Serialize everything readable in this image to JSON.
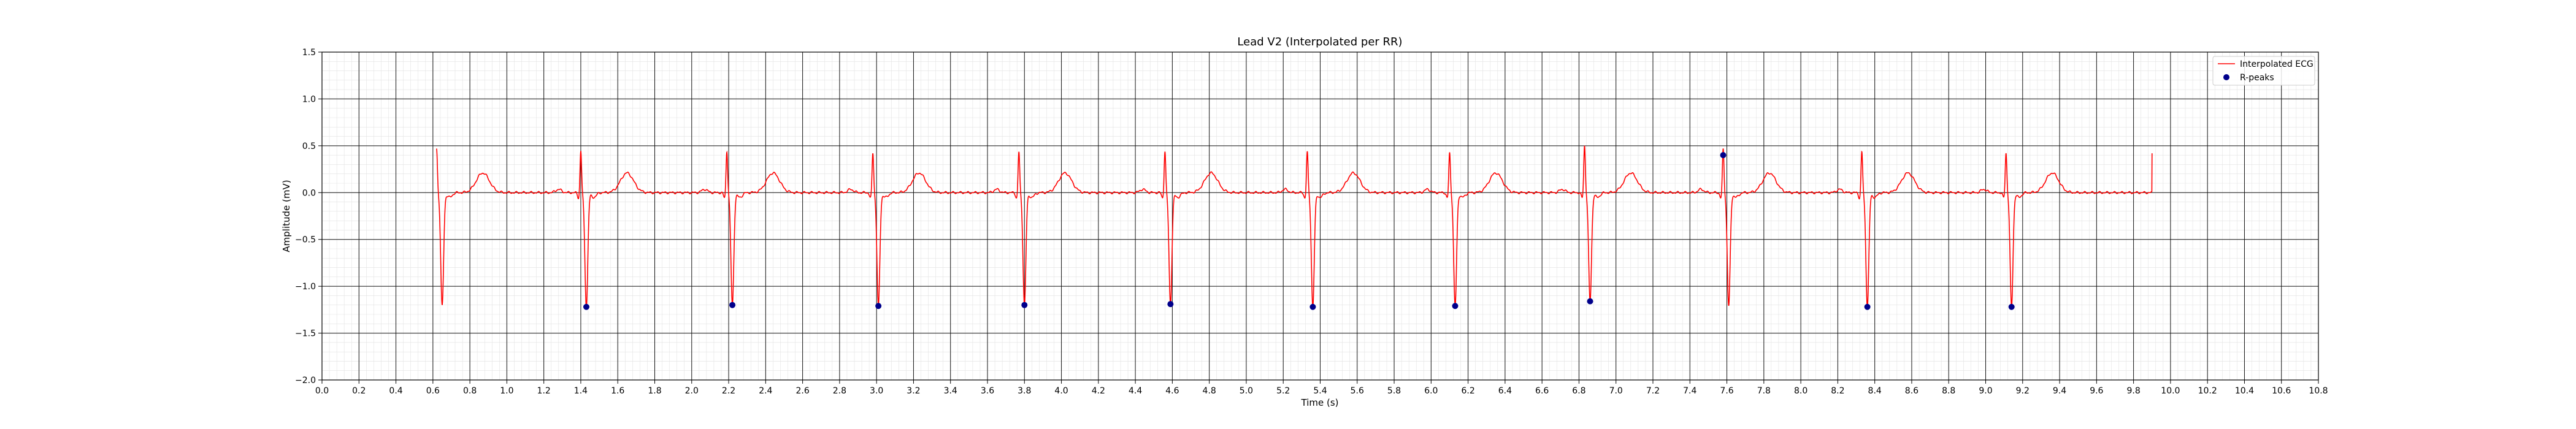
{
  "chart_data": {
    "type": "line",
    "title": "Lead V2 (Interpolated per RR)",
    "xlabel": "Time (s)",
    "ylabel": "Amplitude (mV)",
    "xlim": [
      0.0,
      10.8
    ],
    "ylim": [
      -2.0,
      1.5
    ],
    "x_ticks": [
      "0.0",
      "0.2",
      "0.4",
      "0.6",
      "0.8",
      "1.0",
      "1.2",
      "1.4",
      "1.6",
      "1.8",
      "2.0",
      "2.2",
      "2.4",
      "2.6",
      "2.8",
      "3.0",
      "3.2",
      "3.4",
      "3.6",
      "3.8",
      "4.0",
      "4.2",
      "4.4",
      "4.6",
      "4.8",
      "5.0",
      "5.2",
      "5.4",
      "5.6",
      "5.8",
      "6.0",
      "6.2",
      "6.4",
      "6.6",
      "6.8",
      "7.0",
      "7.2",
      "7.4",
      "7.6",
      "7.8",
      "8.0",
      "8.2",
      "8.4",
      "8.6",
      "8.8",
      "9.0",
      "9.2",
      "9.4",
      "9.6",
      "9.8",
      "10.0",
      "10.2",
      "10.4",
      "10.6",
      "10.8"
    ],
    "y_ticks": [
      "1.5",
      "1.0",
      "0.5",
      "0.0",
      "−0.5",
      "−1.0",
      "−1.5",
      "−2.0"
    ],
    "grid": true,
    "legend_position": "top-right",
    "series": [
      {
        "name": "Interpolated ECG",
        "kind": "line",
        "color": "#ff0000",
        "signal_start": 0.62,
        "signal_end": 9.9,
        "beats": [
          {
            "r": 0.62,
            "r_amp": 0.47,
            "s_amp": -1.21
          },
          {
            "r": 1.4,
            "r_amp": 0.45,
            "s_amp": -1.22
          },
          {
            "r": 2.19,
            "r_amp": 0.45,
            "s_amp": -1.2
          },
          {
            "r": 2.98,
            "r_amp": 0.43,
            "s_amp": -1.21
          },
          {
            "r": 3.77,
            "r_amp": 0.44,
            "s_amp": -1.2
          },
          {
            "r": 4.56,
            "r_amp": 0.45,
            "s_amp": -1.19
          },
          {
            "r": 5.33,
            "r_amp": 0.44,
            "s_amp": -1.22
          },
          {
            "r": 6.1,
            "r_amp": 0.43,
            "s_amp": -1.21
          },
          {
            "r": 6.83,
            "r_amp": 0.51,
            "s_amp": -1.16
          },
          {
            "r": 7.58,
            "r_amp": 0.47,
            "s_amp": -1.21
          },
          {
            "r": 8.33,
            "r_amp": 0.44,
            "s_amp": -1.22
          },
          {
            "r": 9.11,
            "r_amp": 0.43,
            "s_amp": -1.22
          }
        ]
      },
      {
        "name": "R-peaks",
        "kind": "scatter",
        "color": "#00008b",
        "points": [
          {
            "x": 1.43,
            "y": -1.22
          },
          {
            "x": 2.22,
            "y": -1.2
          },
          {
            "x": 3.01,
            "y": -1.21
          },
          {
            "x": 3.8,
            "y": -1.2
          },
          {
            "x": 4.59,
            "y": -1.19
          },
          {
            "x": 5.36,
            "y": -1.22
          },
          {
            "x": 6.13,
            "y": -1.21
          },
          {
            "x": 6.86,
            "y": -1.16
          },
          {
            "x": 7.58,
            "y": 0.4
          },
          {
            "x": 8.36,
            "y": -1.22
          },
          {
            "x": 9.14,
            "y": -1.22
          }
        ]
      }
    ]
  }
}
